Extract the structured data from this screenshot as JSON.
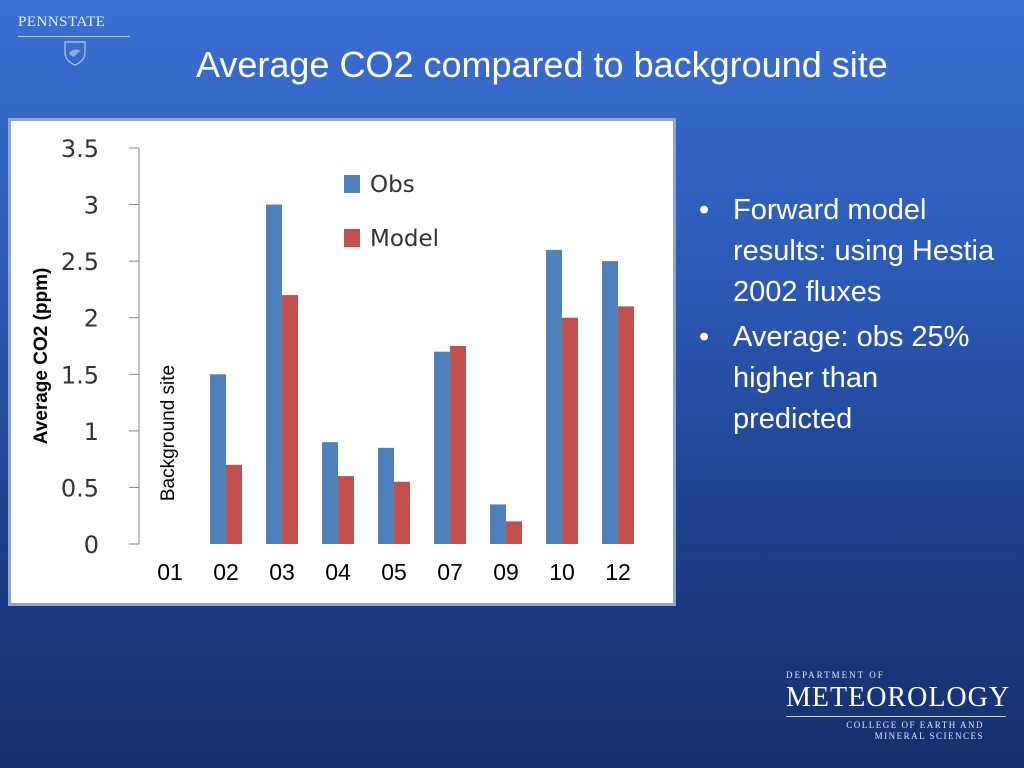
{
  "header": {
    "logo_text": "PENNSTATE",
    "title": "Average CO2 compared to background site"
  },
  "bullets": [
    "Forward model results:  using Hestia 2002 fluxes",
    "Average: obs 25% higher than predicted"
  ],
  "footer": {
    "dept_small": "DEPARTMENT OF",
    "dept_name": "METEOROLOGY",
    "college_line1": "COLLEGE OF EARTH AND",
    "college_line2": "MINERAL SCIENCES"
  },
  "colors": {
    "obs": "#4f81bd",
    "model": "#c0504d"
  },
  "chart_data": {
    "type": "bar",
    "ylabel": "Average CO2 (ppm)",
    "annotation": "Background site",
    "categories": [
      "01",
      "02",
      "03",
      "04",
      "05",
      "07",
      "09",
      "10",
      "12"
    ],
    "yticks": [
      "0",
      "0.5",
      "1",
      "1.5",
      "2",
      "2.5",
      "3",
      "3.5"
    ],
    "ylim": [
      0,
      3.5
    ],
    "legend_position": "top-center",
    "series": [
      {
        "name": "Obs",
        "values": [
          null,
          1.5,
          3.0,
          0.9,
          0.85,
          1.7,
          0.35,
          2.6,
          2.5
        ]
      },
      {
        "name": "Model",
        "values": [
          null,
          0.7,
          2.2,
          0.6,
          0.55,
          1.75,
          0.2,
          2.0,
          2.1
        ]
      }
    ]
  }
}
